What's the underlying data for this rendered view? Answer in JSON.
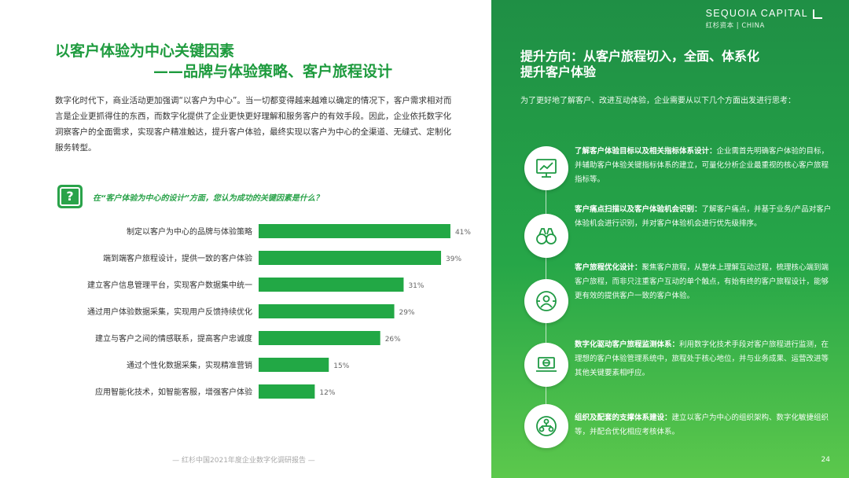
{
  "left": {
    "title_line1": "以客户体验为中心关键因素",
    "title_line2": "——品牌与体验策略、客户旅程设计",
    "intro": "数字化时代下，商业活动更加强调“以客户为中心”。当一切都变得越来越难以确定的情况下，客户需求相对而言是企业更抓得住的东西，而数字化提供了企业更快更好理解和服务客户的有效手段。因此，企业依托数字化洞察客户的全面需求，实现客户精准触达，提升客户体验，最终实现以客户为中心的全渠道、无缝式、定制化服务转型。",
    "question_icon": "?",
    "question": "在“客户体验为中心的设计”方面，您认为成功的关键因素是什么？",
    "footer": "— 红杉中国2021年度企业数字化调研报告 —"
  },
  "chart_data": {
    "type": "bar",
    "orientation": "horizontal",
    "categories": [
      "制定以客户为中心的品牌与体验策略",
      "端到端客户旅程设计，提供一致的客户体验",
      "建立客户信息管理平台，实现客户数据集中统一",
      "通过用户体验数据采集，实现用户反馈持续优化",
      "建立与客户之间的情感联系，提高客户忠诚度",
      "通过个性化数据采集，实现精准营销",
      "应用智能化技术，如智能客服，增强客户体验"
    ],
    "values": [
      41,
      39,
      31,
      29,
      26,
      15,
      12
    ],
    "value_labels": [
      "41%",
      "39%",
      "31%",
      "29%",
      "26%",
      "15%",
      "12%"
    ],
    "color": "#22a845"
  },
  "right": {
    "logo_line1": "SEQUOIA CAPITAL",
    "logo_line2": "红杉资本 | CHINA",
    "title_line1": "提升方向：从客户旅程切入，全面、体系化",
    "title_line2": "提升客户体验",
    "intro": "为了更好地了解客户、改进互动体验，企业需要从以下几个方面出发进行思考：",
    "items": [
      {
        "icon": "chart-monitor-icon",
        "heading": "了解客户体验目标以及相关指标体系设计：",
        "text": "企业需首先明确客户体验的目标，并辅助客户体验关键指标体系的建立，可量化分析企业最重视的核心客户旅程指标等。"
      },
      {
        "icon": "binoculars-icon",
        "heading": "客户痛点扫描以及客户体验机会识别：",
        "text": "了解客户痛点，并基于业务/产品对客户体验机会进行识别，并对客户体验机会进行优先级排序。"
      },
      {
        "icon": "customer-globe-icon",
        "heading": "客户旅程优化设计：",
        "text": "聚焦客户旅程，从整体上理解互动过程，梳理核心端到端客户旅程，而非只注重客户互动的单个触点，有始有终的客户旅程设计，能够更有效的提供客户一致的客户体验。"
      },
      {
        "icon": "laptop-globe-icon",
        "heading": "数字化驱动客户旅程监测体系：",
        "text": "利用数字化技术手段对客户旅程进行监测，在理想的客户体验管理系统中，旅程处于核心地位，并与业务成果、运营改进等其他关键要素相呼应。"
      },
      {
        "icon": "organization-icon",
        "heading": "组织及配套的支撑体系建设：",
        "text": "建立以客户为中心的组织架构、数字化敏捷组织等，并配合优化相应考核体系。"
      }
    ],
    "page_number": "24"
  }
}
